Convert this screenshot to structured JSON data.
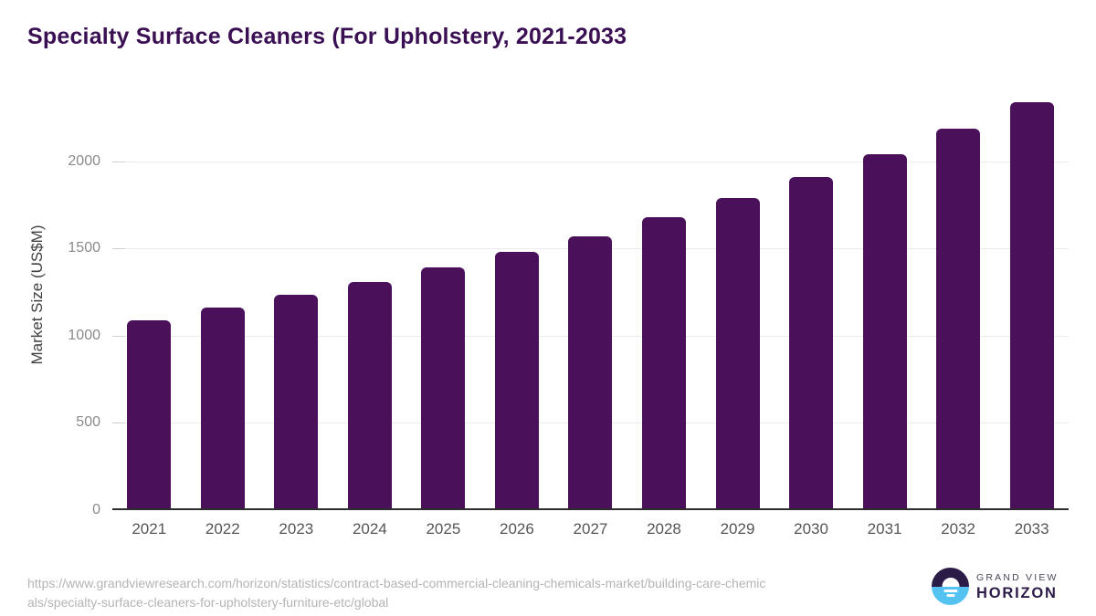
{
  "page_title": "Specialty Surface Cleaners (For Upholstery, 2021-2033",
  "chart_data": {
    "type": "bar",
    "title": "Specialty Surface Cleaners (For Upholstery, 2021-2033",
    "categories": [
      "2021",
      "2022",
      "2023",
      "2024",
      "2025",
      "2026",
      "2027",
      "2028",
      "2029",
      "2030",
      "2031",
      "2032",
      "2033"
    ],
    "values": [
      1090,
      1160,
      1235,
      1310,
      1390,
      1480,
      1570,
      1680,
      1790,
      1910,
      2040,
      2185,
      2340
    ],
    "xlabel": "",
    "ylabel": "Market Size (US$M)",
    "ylim": [
      0,
      2400
    ],
    "yticks": [
      0,
      500,
      1000,
      1500,
      2000
    ],
    "legend": "none",
    "grid": "horizontal-light"
  },
  "footer": {
    "source_url_lines": [
      "https://www.grandviewresearch.com/horizon/statistics/contract-based-commercial-cleaning-chemicals-market/building-care-chemic",
      "als/specialty-surface-cleaners-for-upholstery-furniture-etc/global"
    ],
    "logo": {
      "line1": "GRAND VIEW",
      "line2": "HORIZON"
    }
  },
  "colors": {
    "bar": "#4a1059",
    "title": "#3b0f54",
    "axis_line": "#2d2d2d",
    "gridline": "#ebebeb",
    "ytick_label": "#8a8a8a",
    "xtick_label": "#555555",
    "url_text": "#b4b4b4",
    "logo_dark": "#2b1b47",
    "logo_blue": "#55c3f2"
  }
}
